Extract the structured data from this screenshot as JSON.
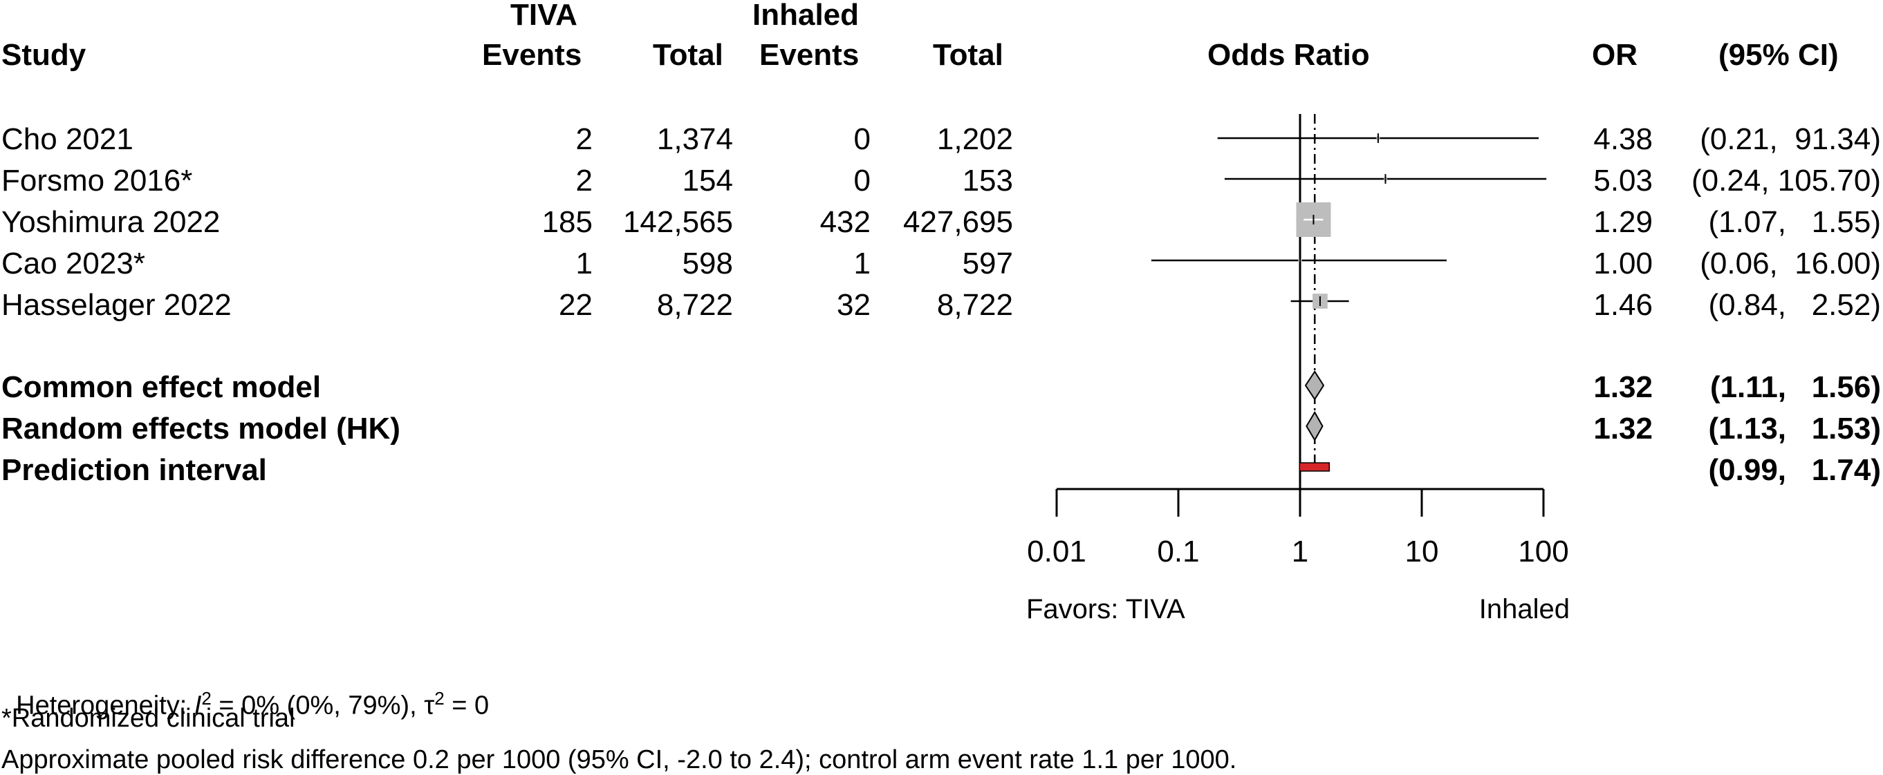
{
  "headers": {
    "study": "Study",
    "tiva_group": "TIVA",
    "tiva_events": "Events",
    "tiva_total": "Total",
    "inhaled_group": "Inhaled",
    "inhaled_events": "Events",
    "inhaled_total": "Total",
    "odds_ratio": "Odds Ratio",
    "or": "OR",
    "ci": "(95% CI)"
  },
  "studies": [
    {
      "name": "Cho 2021",
      "tiva_events": "2",
      "tiva_total": "1,374",
      "inh_events": "0",
      "inh_total": "1,202",
      "or_text": "4.38",
      "ci_text": "(0.21,  91.34)"
    },
    {
      "name": "Forsmo 2016*",
      "tiva_events": "2",
      "tiva_total": "154",
      "inh_events": "0",
      "inh_total": "153",
      "or_text": "5.03",
      "ci_text": "(0.24, 105.70)"
    },
    {
      "name": "Yoshimura 2022",
      "tiva_events": "185",
      "tiva_total": "142,565",
      "inh_events": "432",
      "inh_total": "427,695",
      "or_text": "1.29",
      "ci_text": "(1.07,   1.55)"
    },
    {
      "name": "Cao 2023*",
      "tiva_events": "1",
      "tiva_total": "598",
      "inh_events": "1",
      "inh_total": "597",
      "or_text": "1.00",
      "ci_text": "(0.06,  16.00)"
    },
    {
      "name": "Hasselager 2022",
      "tiva_events": "22",
      "tiva_total": "8,722",
      "inh_events": "32",
      "inh_total": "8,722",
      "or_text": "1.46",
      "ci_text": "(0.84,   2.52)"
    }
  ],
  "summaries": [
    {
      "name": "Common effect model",
      "or_text": "1.32",
      "ci_text": "(1.11,   1.56)"
    },
    {
      "name": "Random effects model (HK)",
      "or_text": "1.32",
      "ci_text": "(1.13,   1.53)"
    },
    {
      "name": "Prediction interval",
      "or_text": "",
      "ci_text": "(0.99,   1.74)"
    }
  ],
  "axis": {
    "ticks": [
      "0.01",
      "0.1",
      "1",
      "10",
      "100"
    ],
    "favors_left": "Favors: TIVA",
    "favors_right": "Inhaled"
  },
  "footnotes": {
    "heterogeneity_prefix": "Heterogeneity: ",
    "i2_symbol": "I",
    "i2_sup": "2",
    "i2_value": " = 0% (0%, 79%), ",
    "tau_symbol": "τ",
    "tau_sup": "2",
    "tau_value": " = 0",
    "rct_note": "*Randomized clinical trial",
    "risk_note": "Approximate pooled risk difference 0.2 per 1000 (95% CI, -2.0 to 2.4); control arm event rate 1.1 per 1000."
  },
  "colors": {
    "line": "#000000",
    "study_box": "#bdbdbd",
    "diamond": "#b3b3b3",
    "prediction_interval": "#d62728",
    "box_whisker": "#ffffff"
  },
  "chart_data": {
    "type": "forest",
    "x_scale": "log",
    "xlim": [
      0.01,
      100
    ],
    "x_ticks": [
      0.01,
      0.1,
      1,
      10,
      100
    ],
    "reference_line": 1,
    "pooled_line": 1.32,
    "studies": [
      {
        "name": "Cho 2021",
        "or": 4.38,
        "lower": 0.21,
        "upper": 91.34,
        "weight": 0.6
      },
      {
        "name": "Forsmo 2016*",
        "or": 5.03,
        "lower": 0.24,
        "upper": 105.7,
        "weight": 0.6
      },
      {
        "name": "Yoshimura 2022",
        "or": 1.29,
        "lower": 1.07,
        "upper": 1.55,
        "weight": 80
      },
      {
        "name": "Cao 2023*",
        "or": 1.0,
        "lower": 0.06,
        "upper": 16.0,
        "weight": 0.8
      },
      {
        "name": "Hasselager 2022",
        "or": 1.46,
        "lower": 0.84,
        "upper": 2.52,
        "weight": 15
      }
    ],
    "summaries": [
      {
        "name": "Common effect model",
        "or": 1.32,
        "lower": 1.11,
        "upper": 1.56
      },
      {
        "name": "Random effects model (HK)",
        "or": 1.32,
        "lower": 1.13,
        "upper": 1.53
      }
    ],
    "prediction_interval": {
      "lower": 0.99,
      "upper": 1.74
    }
  }
}
